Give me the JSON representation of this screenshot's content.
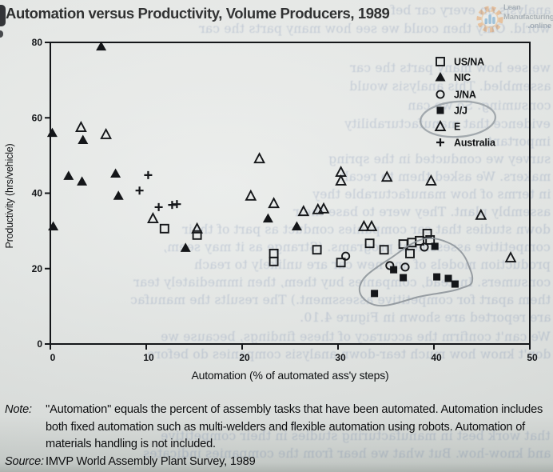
{
  "page": {
    "kind": "scanned book figure",
    "watermark": {
      "line1": "Lean",
      "line2": "Manufacturing",
      "line3": ".online",
      "gear_color": "#edb27c",
      "bars_color": "#7fb2d8",
      "text_color": "#a6aeb4"
    },
    "ink_color": "#141619",
    "paper_color": "#e4e7e5",
    "bleed_lines": [
      "analysis on every car bef",
      "world. Only then could we see how many parts the car",
      "we see how many parts the car",
      "assembled. This analysis would",
      "consuming. So we can",
      "evidence that manufacturability",
      "important.",
      "survey we conducted in the spring",
      "makers. We asked them to recall",
      "in terms of how manufacturable they",
      "assembly plant. They were to base their",
      "down studies that car companies conduct as part of their",
      "competitive assessment programs. (Strange as it may seem,",
      "production models of any new car are unlikely to reach",
      "consumers. Instead, companies buy them, then immediately tear",
      "them apart for competitive assessment.) The results the manufac",
      "are reported are shown in Figure 4.10.",
      "We can't confirm the accuracy of these findings, because we",
      "don't know how much tear-down analysis companies do before",
      "that work best in manufacturing studies in their competitive",
      "and know-how. But what we hear from the companies indicates"
    ]
  },
  "chart_data": {
    "type": "scatter",
    "title": "Automation versus Productivity, Volume Producers, 1989",
    "xlabel": "Automation (% of automated ass'y steps)",
    "ylabel": "Productivity (hrs/vehicle)",
    "xlim": [
      0,
      50
    ],
    "ylim": [
      0,
      80
    ],
    "xticks": [
      0,
      10,
      20,
      30,
      40,
      50
    ],
    "yticks": [
      0,
      20,
      40,
      60,
      80
    ],
    "grid": false,
    "legend_position": "upper right inside plot",
    "legend": [
      {
        "symbol": "open-square",
        "label": "US/NA"
      },
      {
        "symbol": "filled-triangle",
        "label": "NIC"
      },
      {
        "symbol": "open-circle",
        "label": "J/NA"
      },
      {
        "symbol": "filled-square",
        "label": "J/J"
      },
      {
        "symbol": "open-triangle",
        "label": "E"
      },
      {
        "symbol": "plus",
        "label": "Australia"
      }
    ],
    "series": [
      {
        "name": "US/NA",
        "marker": "open-square",
        "points": [
          [
            11.9,
            30.6
          ],
          [
            15.3,
            28.9
          ],
          [
            23.3,
            24.0
          ],
          [
            23.3,
            21.9
          ],
          [
            27.8,
            25.0
          ],
          [
            30.3,
            21.6
          ],
          [
            33.3,
            26.7
          ],
          [
            34.8,
            25.0
          ],
          [
            36.8,
            26.5
          ],
          [
            37.7,
            26.9
          ],
          [
            38.5,
            27.4
          ],
          [
            39.3,
            29.3
          ],
          [
            39.6,
            27.6
          ],
          [
            37.5,
            24.0
          ]
        ]
      },
      {
        "name": "NIC",
        "marker": "filled-triangle",
        "points": [
          [
            5.3,
            78.9
          ],
          [
            0.2,
            56.0
          ],
          [
            3.4,
            54.1
          ],
          [
            1.9,
            44.6
          ],
          [
            3.3,
            43.1
          ],
          [
            6.8,
            45.2
          ],
          [
            7.1,
            39.3
          ],
          [
            0.3,
            31.2
          ],
          [
            14.1,
            25.5
          ],
          [
            22.7,
            33.3
          ],
          [
            25.7,
            31.2
          ]
        ]
      },
      {
        "name": "J/NA",
        "marker": "open-circle",
        "points": [
          [
            30.8,
            23.3
          ],
          [
            39.0,
            25.7
          ],
          [
            35.4,
            20.8
          ],
          [
            37.0,
            20.4
          ]
        ]
      },
      {
        "name": "J/J",
        "marker": "filled-square",
        "points": [
          [
            40.1,
            25.9
          ],
          [
            35.8,
            19.7
          ],
          [
            36.8,
            17.6
          ],
          [
            40.3,
            17.8
          ],
          [
            41.5,
            17.4
          ],
          [
            42.2,
            15.9
          ],
          [
            33.8,
            13.4
          ]
        ]
      },
      {
        "name": "E",
        "marker": "open-triangle",
        "points": [
          [
            3.2,
            57.5
          ],
          [
            5.8,
            55.6
          ],
          [
            21.8,
            49.2
          ],
          [
            30.3,
            45.6
          ],
          [
            30.3,
            43.3
          ],
          [
            35.1,
            44.3
          ],
          [
            39.7,
            43.3
          ],
          [
            20.9,
            39.3
          ],
          [
            23.3,
            37.3
          ],
          [
            10.7,
            33.3
          ],
          [
            15.3,
            30.6
          ],
          [
            26.4,
            35.2
          ],
          [
            27.9,
            35.7
          ],
          [
            28.5,
            35.9
          ],
          [
            32.7,
            31.2
          ],
          [
            33.5,
            31.2
          ],
          [
            44.9,
            34.2
          ],
          [
            48.0,
            22.9
          ]
        ]
      },
      {
        "name": "Australia",
        "marker": "plus",
        "points": [
          [
            10.2,
            44.8
          ],
          [
            9.3,
            40.7
          ],
          [
            11.3,
            36.3
          ],
          [
            12.7,
            36.9
          ],
          [
            13.2,
            37.1
          ]
        ]
      }
    ],
    "annotations": [
      {
        "type": "hand-drawn-ellipse",
        "around": "legend entries J/J and E",
        "color": "#979da3"
      },
      {
        "type": "hand-drawn-loop",
        "around": "J/J data cluster at lower right",
        "color": "#8a9096"
      }
    ]
  },
  "footer": {
    "note_label": "Note:",
    "note_text": "''Automation'' equals the percent of assembly tasks that have been automated. Automation includes both fixed automation such as multi-welders and flexible automation using robots. Automation of materials handling is not included.",
    "source_label": "Source:",
    "source_text": "IMVP World Assembly Plant Survey, 1989"
  }
}
